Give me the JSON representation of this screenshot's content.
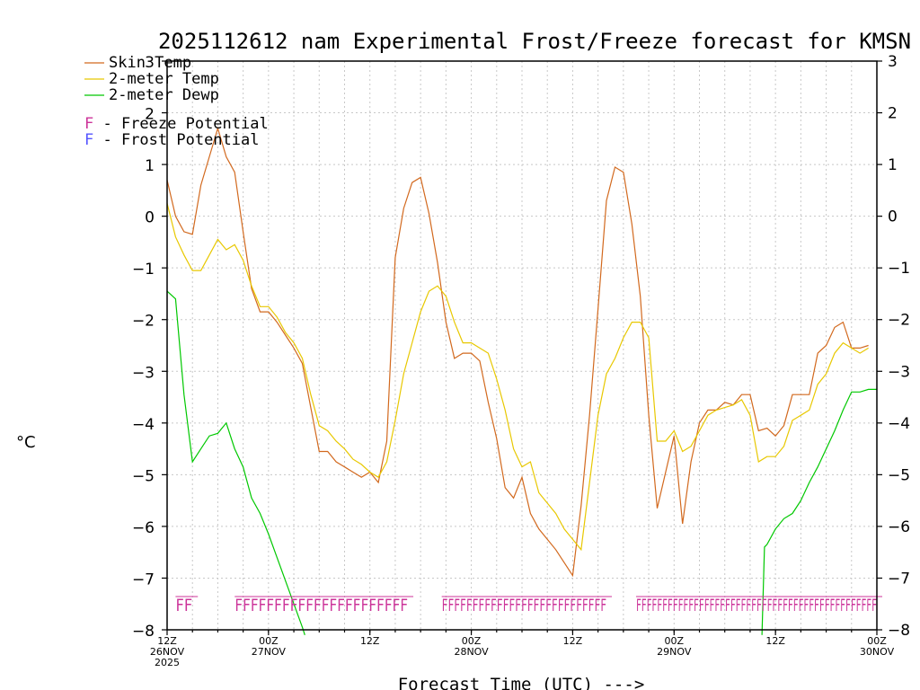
{
  "chart_data": {
    "type": "line",
    "title": "2025112612 nam Experimental Frost/Freeze forecast for KMSN",
    "xlabel": "Forecast Time (UTC) --->",
    "ylabel": "°C",
    "ylim": [
      -8,
      3
    ],
    "xlim": [
      0,
      84
    ],
    "y_ticks": [
      3,
      2,
      1,
      0,
      -1,
      -2,
      -3,
      -4,
      -5,
      -6,
      -7,
      -8
    ],
    "x_ticks": [
      {
        "x": 0,
        "lines": [
          "12Z",
          "26NOV",
          "2025"
        ]
      },
      {
        "x": 12,
        "lines": [
          "00Z",
          "27NOV"
        ]
      },
      {
        "x": 24,
        "lines": [
          "12Z"
        ]
      },
      {
        "x": 36,
        "lines": [
          "00Z",
          "28NOV"
        ]
      },
      {
        "x": 48,
        "lines": [
          "12Z"
        ]
      },
      {
        "x": 60,
        "lines": [
          "00Z",
          "29NOV"
        ]
      },
      {
        "x": 72,
        "lines": [
          "12Z"
        ]
      },
      {
        "x": 84,
        "lines": [
          "00Z",
          "30NOV"
        ]
      }
    ],
    "legend": [
      {
        "name": "Skin Temp",
        "color": "#d2691e"
      },
      {
        "name": "2-meter Temp",
        "color": "#e8c800"
      },
      {
        "name": "2-meter Dewp",
        "color": "#00c800"
      }
    ],
    "potential_legend": [
      {
        "letter": "F",
        "text": " - Freeze Potential",
        "color": "#cc3399"
      },
      {
        "letter": "F",
        "text": " - Frost Potential",
        "color": "#5555ff"
      }
    ],
    "series": [
      {
        "name": "Skin Temp",
        "color": "#d2691e",
        "points": [
          [
            0,
            0.7
          ],
          [
            1,
            0
          ],
          [
            2,
            -0.3
          ],
          [
            3,
            -0.35
          ],
          [
            4,
            0.6
          ],
          [
            5,
            1.15
          ],
          [
            6,
            1.7
          ],
          [
            7,
            1.15
          ],
          [
            8,
            0.85
          ],
          [
            9,
            -0.3
          ],
          [
            10,
            -1.4
          ],
          [
            11,
            -1.85
          ],
          [
            12,
            -1.85
          ],
          [
            13,
            -2.05
          ],
          [
            14,
            -2.3
          ],
          [
            15,
            -2.55
          ],
          [
            16,
            -2.85
          ],
          [
            17,
            -3.7
          ],
          [
            18,
            -4.55
          ],
          [
            19,
            -4.55
          ],
          [
            20,
            -4.75
          ],
          [
            21,
            -4.85
          ],
          [
            22,
            -4.95
          ],
          [
            23,
            -5.05
          ],
          [
            24,
            -4.95
          ],
          [
            25,
            -5.15
          ],
          [
            26,
            -4.35
          ],
          [
            27,
            -0.8
          ],
          [
            28,
            0.15
          ],
          [
            29,
            0.65
          ],
          [
            30,
            0.75
          ],
          [
            31,
            0.05
          ],
          [
            32,
            -0.9
          ],
          [
            33,
            -2.05
          ],
          [
            34,
            -2.75
          ],
          [
            35,
            -2.65
          ],
          [
            36,
            -2.65
          ],
          [
            37,
            -2.8
          ],
          [
            38,
            -3.6
          ],
          [
            39,
            -4.3
          ],
          [
            40,
            -5.25
          ],
          [
            41,
            -5.45
          ],
          [
            42,
            -5.05
          ],
          [
            43,
            -5.75
          ],
          [
            44,
            -6.05
          ],
          [
            45,
            -6.25
          ],
          [
            46,
            -6.45
          ],
          [
            47,
            -6.7
          ],
          [
            48,
            -6.95
          ],
          [
            49,
            -5.6
          ],
          [
            50,
            -3.85
          ],
          [
            51,
            -1.8
          ],
          [
            52,
            0.3
          ],
          [
            53,
            0.95
          ],
          [
            54,
            0.85
          ],
          [
            55,
            -0.15
          ],
          [
            56,
            -1.55
          ],
          [
            57,
            -3.85
          ],
          [
            58,
            -5.65
          ],
          [
            59,
            -4.95
          ],
          [
            60,
            -4.25
          ],
          [
            61,
            -5.95
          ],
          [
            62,
            -4.75
          ],
          [
            63,
            -4.0
          ],
          [
            64,
            -3.75
          ],
          [
            65,
            -3.75
          ],
          [
            66,
            -3.6
          ],
          [
            67,
            -3.65
          ],
          [
            68,
            -3.45
          ],
          [
            69,
            -3.45
          ],
          [
            70,
            -4.15
          ],
          [
            71,
            -4.1
          ],
          [
            72,
            -4.25
          ],
          [
            73,
            -4.05
          ],
          [
            74,
            -3.45
          ],
          [
            75,
            -3.45
          ],
          [
            76,
            -3.45
          ],
          [
            77,
            -2.65
          ],
          [
            78,
            -2.5
          ],
          [
            79,
            -2.15
          ],
          [
            80,
            -2.05
          ],
          [
            81,
            -2.55
          ],
          [
            82,
            -2.55
          ],
          [
            83,
            -2.5
          ]
        ]
      },
      {
        "name": "2-meter Temp",
        "color": "#e8c800",
        "points": [
          [
            0,
            0.25
          ],
          [
            1,
            -0.4
          ],
          [
            2,
            -0.75
          ],
          [
            3,
            -1.05
          ],
          [
            4,
            -1.05
          ],
          [
            5,
            -0.75
          ],
          [
            6,
            -0.45
          ],
          [
            7,
            -0.65
          ],
          [
            8,
            -0.55
          ],
          [
            9,
            -0.85
          ],
          [
            10,
            -1.35
          ],
          [
            11,
            -1.75
          ],
          [
            12,
            -1.75
          ],
          [
            13,
            -1.95
          ],
          [
            14,
            -2.25
          ],
          [
            15,
            -2.45
          ],
          [
            16,
            -2.75
          ],
          [
            17,
            -3.45
          ],
          [
            18,
            -4.05
          ],
          [
            19,
            -4.15
          ],
          [
            20,
            -4.35
          ],
          [
            21,
            -4.5
          ],
          [
            22,
            -4.7
          ],
          [
            23,
            -4.8
          ],
          [
            24,
            -4.95
          ],
          [
            25,
            -5.05
          ],
          [
            26,
            -4.75
          ],
          [
            27,
            -3.95
          ],
          [
            28,
            -3.05
          ],
          [
            29,
            -2.45
          ],
          [
            30,
            -1.85
          ],
          [
            31,
            -1.45
          ],
          [
            32,
            -1.35
          ],
          [
            33,
            -1.55
          ],
          [
            34,
            -2.05
          ],
          [
            35,
            -2.45
          ],
          [
            36,
            -2.45
          ],
          [
            37,
            -2.55
          ],
          [
            38,
            -2.65
          ],
          [
            39,
            -3.15
          ],
          [
            40,
            -3.75
          ],
          [
            41,
            -4.5
          ],
          [
            42,
            -4.85
          ],
          [
            43,
            -4.75
          ],
          [
            44,
            -5.35
          ],
          [
            45,
            -5.55
          ],
          [
            46,
            -5.75
          ],
          [
            47,
            -6.05
          ],
          [
            48,
            -6.25
          ],
          [
            49,
            -6.45
          ],
          [
            50,
            -5.15
          ],
          [
            51,
            -3.85
          ],
          [
            52,
            -3.05
          ],
          [
            53,
            -2.75
          ],
          [
            54,
            -2.35
          ],
          [
            55,
            -2.05
          ],
          [
            56,
            -2.05
          ],
          [
            57,
            -2.35
          ],
          [
            58,
            -4.35
          ],
          [
            59,
            -4.35
          ],
          [
            60,
            -4.15
          ],
          [
            61,
            -4.55
          ],
          [
            62,
            -4.45
          ],
          [
            63,
            -4.15
          ],
          [
            64,
            -3.85
          ],
          [
            65,
            -3.75
          ],
          [
            66,
            -3.7
          ],
          [
            67,
            -3.65
          ],
          [
            68,
            -3.55
          ],
          [
            69,
            -3.85
          ],
          [
            70,
            -4.75
          ],
          [
            71,
            -4.65
          ],
          [
            72,
            -4.65
          ],
          [
            73,
            -4.45
          ],
          [
            74,
            -3.95
          ],
          [
            75,
            -3.85
          ],
          [
            76,
            -3.75
          ],
          [
            77,
            -3.25
          ],
          [
            78,
            -3.05
          ],
          [
            79,
            -2.65
          ],
          [
            80,
            -2.45
          ],
          [
            81,
            -2.55
          ],
          [
            82,
            -2.65
          ],
          [
            83,
            -2.55
          ]
        ]
      },
      {
        "name": "2-meter Dewp",
        "color": "#00c800",
        "points": [
          [
            0,
            -1.45
          ],
          [
            1,
            -1.6
          ],
          [
            2,
            -3.45
          ],
          [
            3,
            -4.75
          ],
          [
            4,
            -4.5
          ],
          [
            5,
            -4.25
          ],
          [
            6,
            -4.2
          ],
          [
            7,
            -4.0
          ],
          [
            8,
            -4.5
          ],
          [
            9,
            -4.85
          ],
          [
            10,
            -5.45
          ],
          [
            11,
            -5.75
          ],
          [
            12,
            -6.15
          ],
          [
            13,
            -6.6
          ],
          [
            14,
            -7.05
          ],
          [
            15,
            -7.5
          ],
          [
            16,
            -7.95
          ],
          [
            16.3,
            -8.1
          ]
        ]
      },
      {
        "name": "2-meter Dewp (late)",
        "color": "#00c800",
        "points": [
          [
            70.4,
            -8.1
          ],
          [
            70.7,
            -6.4
          ],
          [
            71,
            -6.35
          ],
          [
            72,
            -6.05
          ],
          [
            73,
            -5.85
          ],
          [
            74,
            -5.75
          ],
          [
            75,
            -5.5
          ],
          [
            76,
            -5.15
          ],
          [
            77,
            -4.85
          ],
          [
            78,
            -4.5
          ],
          [
            79,
            -4.15
          ],
          [
            80,
            -3.75
          ],
          [
            81,
            -3.4
          ],
          [
            82,
            -3.4
          ],
          [
            83,
            -3.35
          ],
          [
            84,
            -3.35
          ]
        ]
      }
    ],
    "potential_rows": [
      {
        "type": "freeze",
        "color": "#cc3399",
        "text": "FF",
        "x_start": 1,
        "x_end": 3
      },
      {
        "type": "freeze",
        "color": "#cc3399",
        "text": "FFFFFFFFFFFFFFFFFFFFFF",
        "x_start": 8,
        "x_end": 28.5
      },
      {
        "type": "freeze",
        "color": "#cc3399",
        "text": "FFFFFFFFFFFFFFFFFFFFFFFFFFF",
        "x_start": 32.5,
        "x_end": 52
      },
      {
        "type": "freeze",
        "color": "#cc3399",
        "text": "FFFFFFFFFFFFFFFFFFFFFFFFFFFFFFFFFFFFFFFFFFFFFF",
        "x_start": 55.5,
        "x_end": 84
      }
    ]
  }
}
